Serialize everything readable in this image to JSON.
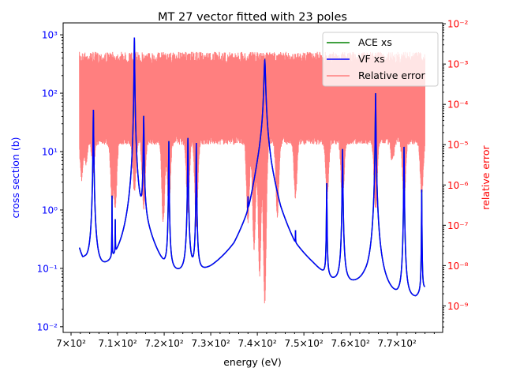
{
  "chart_data": {
    "type": "line",
    "title": "MT 27 vector fitted with 23 poles",
    "xlabel": "energy (eV)",
    "ylabel_left": "cross section (b)",
    "ylabel_right": "relative error",
    "x_scale": "linear",
    "y_left_scale": "log",
    "y_right_scale": "log",
    "xlim": [
      698.3,
      779.8
    ],
    "ylim_left": [
      0.008,
      1600
    ],
    "ylim_right": [
      2.2e-10,
      0.0105
    ],
    "x_ticks": [
      700,
      710,
      720,
      730,
      740,
      750,
      760,
      770
    ],
    "x_tick_labels": [
      "7×10²",
      "7.1×10²",
      "7.2×10²",
      "7.3×10²",
      "7.4×10²",
      "7.5×10²",
      "7.6×10²",
      "7.7×10²"
    ],
    "y_left_ticks": [
      0.01,
      0.1,
      1,
      10,
      100,
      1000
    ],
    "y_left_tick_labels": [
      "10⁻²",
      "10⁻¹",
      "10⁰",
      "10¹",
      "10²",
      "10³"
    ],
    "y_right_ticks": [
      1e-09,
      1e-08,
      1e-07,
      1e-06,
      1e-05,
      0.0001,
      0.001,
      0.01
    ],
    "y_right_tick_labels": [
      "10⁻⁹",
      "10⁻⁸",
      "10⁻⁷",
      "10⁻⁶",
      "10⁻⁵",
      "10⁻⁴",
      "10⁻³",
      "10⁻²"
    ],
    "legend": {
      "position": "upper right",
      "entries": [
        {
          "label": "ACE xs",
          "color": "#008000"
        },
        {
          "label": "VF xs",
          "color": "#0000ff"
        },
        {
          "label": "Relative error",
          "color": "#ff7f7f"
        }
      ]
    },
    "colors": {
      "left_axis": "#0000ff",
      "right_axis": "#ff0000",
      "ace": "#008000",
      "vf": "#0000ff",
      "error": "#ff7f7f"
    },
    "series": [
      {
        "name": "ACE xs",
        "axis": "left",
        "x_range": [
          701.8,
          776.0
        ],
        "background": [
          [
            701.8,
            0.19
          ],
          [
            702.5,
            0.11
          ],
          [
            703.0,
            0.1
          ],
          [
            705.0,
            0.045
          ],
          [
            708.0,
            0.042
          ],
          [
            711.0,
            0.043
          ],
          [
            713.0,
            0.06
          ],
          [
            716.0,
            0.3
          ],
          [
            720.0,
            0.04
          ],
          [
            722.0,
            0.031
          ],
          [
            725.0,
            0.03
          ],
          [
            727.0,
            0.03
          ],
          [
            730.0,
            0.04
          ],
          [
            735.0,
            0.09
          ],
          [
            738.0,
            0.4
          ],
          [
            740.0,
            4
          ],
          [
            741.5,
            20
          ],
          [
            743.0,
            3
          ],
          [
            745.0,
            0.5
          ],
          [
            748.0,
            0.1
          ],
          [
            752.0,
            0.05
          ],
          [
            754.0,
            0.032
          ],
          [
            756.0,
            0.02
          ],
          [
            760.0,
            0.023
          ],
          [
            763.0,
            0.03
          ],
          [
            767.0,
            0.015
          ],
          [
            770.0,
            0.013
          ],
          [
            772.0,
            0.015
          ],
          [
            774.0,
            0.018
          ],
          [
            776.0,
            0.034
          ]
        ],
        "resonances": [
          {
            "E": 704.8,
            "peak": 52,
            "width": 0.05
          },
          {
            "E": 708.8,
            "peak": 1.6,
            "width": 0.02
          },
          {
            "E": 709.5,
            "peak": 0.5,
            "width": 0.02
          },
          {
            "E": 713.6,
            "peak": 900,
            "width": 0.05
          },
          {
            "E": 715.6,
            "peak": 40,
            "width": 0.06
          },
          {
            "E": 721.0,
            "peak": 15,
            "width": 0.04
          },
          {
            "E": 725.1,
            "peak": 17,
            "width": 0.05
          },
          {
            "E": 726.9,
            "peak": 14,
            "width": 0.04
          },
          {
            "E": 738.0,
            "peak": 0.7,
            "width": 0.03
          },
          {
            "E": 741.6,
            "peak": 350,
            "width": 0.15
          },
          {
            "E": 748.2,
            "peak": 0.17,
            "width": 0.02
          },
          {
            "E": 754.9,
            "peak": 2.8,
            "width": 0.04
          },
          {
            "E": 758.3,
            "peak": 11,
            "width": 0.05
          },
          {
            "E": 765.4,
            "peak": 100,
            "width": 0.05
          },
          {
            "E": 771.5,
            "peak": 12,
            "width": 0.04
          },
          {
            "E": 775.3,
            "peak": 2.2,
            "width": 0.03
          }
        ]
      },
      {
        "name": "VF xs",
        "axis": "left",
        "same_as": "ACE xs"
      },
      {
        "name": "Relative error",
        "axis": "right",
        "x_range": [
          701.8,
          776.0
        ],
        "typical_range": [
          1e-05,
          0.002
        ],
        "dips": [
          {
            "E": 702.3,
            "min": 1.2e-06
          },
          {
            "E": 703.2,
            "min": 3e-06
          },
          {
            "E": 704.8,
            "min": 2e-06
          },
          {
            "E": 708.8,
            "min": 4e-07
          },
          {
            "E": 709.5,
            "min": 2e-07
          },
          {
            "E": 713.6,
            "min": 6e-07
          },
          {
            "E": 715.6,
            "min": 2e-07
          },
          {
            "E": 719.8,
            "min": 1e-07
          },
          {
            "E": 721.0,
            "min": 2e-07
          },
          {
            "E": 725.1,
            "min": 2e-07
          },
          {
            "E": 726.9,
            "min": 8e-08
          },
          {
            "E": 738.0,
            "min": 1e-07
          },
          {
            "E": 739.3,
            "min": 2e-08
          },
          {
            "E": 740.5,
            "min": 5e-09
          },
          {
            "E": 741.6,
            "min": 1e-09
          },
          {
            "E": 744.3,
            "min": 1.5e-07
          },
          {
            "E": 748.2,
            "min": 4e-07
          },
          {
            "E": 755.0,
            "min": 4e-07
          },
          {
            "E": 758.3,
            "min": 3e-07
          },
          {
            "E": 765.4,
            "min": 2e-07
          },
          {
            "E": 769.0,
            "min": 3e-06
          },
          {
            "E": 771.5,
            "min": 3e-07
          },
          {
            "E": 775.3,
            "min": 5e-07
          }
        ]
      }
    ],
    "grid": false
  }
}
